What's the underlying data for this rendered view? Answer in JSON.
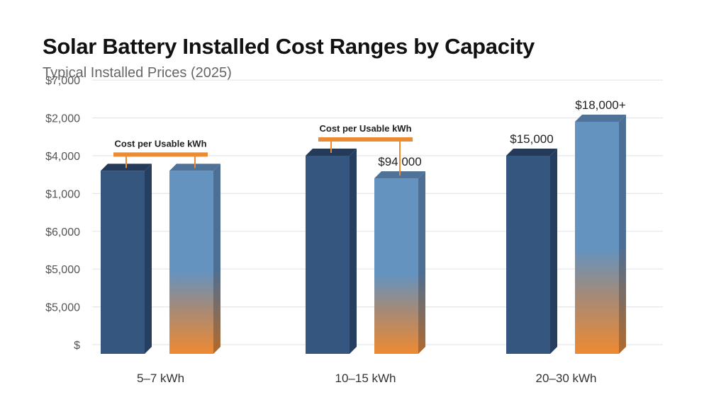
{
  "chart_data": {
    "type": "bar",
    "title": "Solar Battery Installed Cost Ranges by Capacity",
    "subtitle": "Typical Installed Prices (2025)",
    "y_tick_labels": [
      "$",
      "$5,000",
      "$5,000",
      "$6,000",
      "$1,000",
      "$4,000",
      "$2,000",
      "$7,000"
    ],
    "categories": [
      "5–7 kWh",
      "10–15 kWh",
      "20–30 kWh"
    ],
    "series": [
      {
        "values_in_tick_steps": [
          4.6,
          5.0,
          5.0
        ],
        "color": "#34567f"
      },
      {
        "values_in_tick_steps": [
          4.6,
          4.4,
          5.9
        ],
        "color": "#6593bf",
        "gradient_bottom_color": "#ee8a32"
      }
    ],
    "data_labels": [
      {
        "category": 1,
        "series": 1,
        "text": "$94,000"
      },
      {
        "category": 2,
        "series": 0,
        "text": "$15,000"
      },
      {
        "category": 2,
        "series": 1,
        "text": "$18,000+"
      }
    ],
    "annotations": [
      {
        "category": 0,
        "text": "Cost per Usable kWh"
      },
      {
        "category": 1,
        "text": "Cost per Usable kWh"
      }
    ],
    "annotation_color": "#ee8a32",
    "grid": true,
    "legend": "none"
  }
}
